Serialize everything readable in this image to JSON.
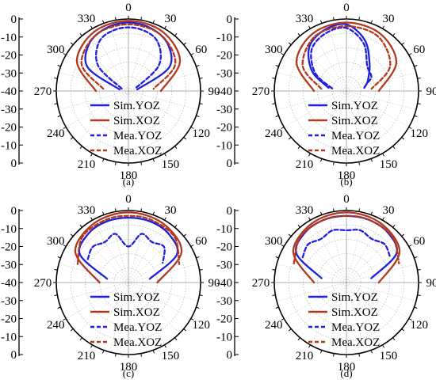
{
  "figure": {
    "panels": [
      {
        "caption": "(a)",
        "chart_data": {
          "type": "polar-line",
          "r_ticks": [
            "0",
            "-10",
            "-20",
            "-30",
            "-40",
            "-30",
            "-20",
            "-10",
            "0"
          ],
          "angle_labels": [
            "0",
            "30",
            "60",
            "90",
            "120",
            "150",
            "180",
            "210",
            "240",
            "270",
            "300",
            "330"
          ],
          "rlim": [
            -40,
            0
          ],
          "legend": "bottom-center",
          "series": [
            {
              "name": "Sim.YOZ",
              "color": "#1f1fdc",
              "dash": "solid",
              "angles": [
                -80,
                -60,
                -40,
                -20,
                0,
                20,
                40,
                60,
                80
              ],
              "values": [
                -35,
                -14,
                -6,
                -3,
                -2,
                -3,
                -6,
                -14,
                -35
              ]
            },
            {
              "name": "Sim.XOZ",
              "color": "#b03a20",
              "dash": "solid",
              "angles": [
                -90,
                -60,
                -30,
                0,
                30,
                60,
                90
              ],
              "values": [
                -22,
                -7,
                -2,
                -1,
                -2,
                -7,
                -22
              ]
            },
            {
              "name": "Mea.YOZ",
              "color": "#1f1fdc",
              "dash": "dashed",
              "angles": [
                -70,
                -50,
                -30,
                -10,
                10,
                30,
                50,
                70
              ],
              "values": [
                -36,
                -18,
                -8,
                -5,
                -5,
                -8,
                -18,
                -36
              ]
            },
            {
              "name": "Mea.XOZ",
              "color": "#b03a20",
              "dash": "dashed",
              "angles": [
                -85,
                -60,
                -30,
                0,
                30,
                60,
                85
              ],
              "values": [
                -26,
                -10,
                -4,
                -3,
                -4,
                -10,
                -26
              ]
            }
          ]
        }
      },
      {
        "caption": "(b)",
        "chart_data": {
          "type": "polar-line",
          "r_ticks": [
            "0",
            "-10",
            "-20",
            "-30",
            "-40",
            "-30",
            "-20",
            "-10",
            "0"
          ],
          "angle_labels": [
            "0",
            "30",
            "60",
            "90",
            "120",
            "150",
            "180",
            "210",
            "240",
            "270",
            "300",
            "330"
          ],
          "rlim": [
            -40,
            0
          ],
          "legend": "bottom-center",
          "series": [
            {
              "name": "Sim.YOZ",
              "color": "#1f1fdc",
              "dash": "solid",
              "angles": [
                -80,
                -60,
                -40,
                -20,
                0,
                20,
                40,
                60,
                70,
                80
              ],
              "values": [
                -30,
                -18,
                -8,
                -4,
                -3,
                -10,
                -20,
                -26,
                -28,
                -30
              ]
            },
            {
              "name": "Sim.XOZ",
              "color": "#b03a20",
              "dash": "solid",
              "angles": [
                -90,
                -60,
                -30,
                0,
                30,
                60,
                90
              ],
              "values": [
                -22,
                -8,
                -3,
                -2,
                -3,
                -8,
                -22
              ]
            },
            {
              "name": "Mea.YOZ",
              "color": "#1f1fdc",
              "dash": "dashed",
              "angles": [
                -80,
                -60,
                -40,
                -20,
                0,
                20,
                40,
                60,
                70,
                80
              ],
              "values": [
                -32,
                -20,
                -10,
                -6,
                -5,
                -12,
                -22,
                -24,
                -28,
                -30
              ]
            },
            {
              "name": "Mea.XOZ",
              "color": "#b03a20",
              "dash": "dashed",
              "angles": [
                -85,
                -60,
                -30,
                0,
                30,
                60,
                85
              ],
              "values": [
                -26,
                -12,
                -5,
                -4,
                -5,
                -12,
                -26
              ]
            }
          ]
        }
      },
      {
        "caption": "(c)",
        "chart_data": {
          "type": "polar-line",
          "r_ticks": [
            "0",
            "-10",
            "-20",
            "-30",
            "-40",
            "-30",
            "-20",
            "-10",
            "0"
          ],
          "angle_labels": [
            "0",
            "30",
            "60",
            "90",
            "120",
            "150",
            "180",
            "210",
            "240",
            "270",
            "300",
            "330"
          ],
          "rlim": [
            -40,
            0
          ],
          "legend": "bottom-center",
          "series": [
            {
              "name": "Sim.YOZ",
              "color": "#1f1fdc",
              "dash": "solid",
              "angles": [
                -80,
                -60,
                -40,
                -20,
                0,
                20,
                40,
                60,
                80
              ],
              "values": [
                -28,
                -9,
                -5,
                -4,
                -4,
                -4,
                -5,
                -9,
                -28
              ]
            },
            {
              "name": "Sim.XOZ",
              "color": "#b03a20",
              "dash": "solid",
              "angles": [
                -90,
                -60,
                -30,
                0,
                30,
                60,
                90
              ],
              "values": [
                -24,
                -6,
                -2,
                -1,
                -2,
                -6,
                -24
              ]
            },
            {
              "name": "Mea.YOZ",
              "color": "#1f1fdc",
              "dash": "dashed",
              "angles": [
                -60,
                -45,
                -30,
                -15,
                0,
                15,
                30,
                45,
                60
              ],
              "values": [
                -14,
                -12,
                -14,
                -12,
                -20,
                -12,
                -14,
                -12,
                -18
              ]
            },
            {
              "name": "Mea.XOZ",
              "color": "#b03a20",
              "dash": "dashed",
              "angles": [
                -70,
                -45,
                -20,
                0,
                20,
                45,
                70
              ],
              "values": [
                -10,
                -4,
                -3,
                -3,
                -3,
                -4,
                -10
              ]
            }
          ]
        }
      },
      {
        "caption": "(d)",
        "chart_data": {
          "type": "polar-line",
          "r_ticks": [
            "0",
            "-10",
            "-20",
            "-30",
            "-40",
            "-30",
            "-20",
            "-10",
            "0"
          ],
          "angle_labels": [
            "0",
            "30",
            "60",
            "90",
            "120",
            "150",
            "180",
            "210",
            "240",
            "270",
            "300",
            "330"
          ],
          "rlim": [
            -40,
            0
          ],
          "legend": "bottom-center",
          "series": [
            {
              "name": "Sim.YOZ",
              "color": "#1f1fdc",
              "dash": "solid",
              "angles": [
                -80,
                -60,
                -40,
                -20,
                0,
                20,
                40,
                60,
                80
              ],
              "values": [
                -26,
                -8,
                -4,
                -3,
                -3,
                -3,
                -4,
                -8,
                -26
              ]
            },
            {
              "name": "Sim.XOZ",
              "color": "#b03a20",
              "dash": "solid",
              "angles": [
                -90,
                -60,
                -30,
                0,
                30,
                60,
                90
              ],
              "values": [
                -22,
                -6,
                -2,
                -1,
                -2,
                -6,
                -22
              ]
            },
            {
              "name": "Mea.YOZ",
              "color": "#1f1fdc",
              "dash": "dashed",
              "angles": [
                -60,
                -45,
                -30,
                -15,
                0,
                15,
                30,
                45,
                60
              ],
              "values": [
                -12,
                -10,
                -12,
                -10,
                -11,
                -10,
                -12,
                -10,
                -12
              ]
            },
            {
              "name": "Mea.XOZ",
              "color": "#b03a20",
              "dash": "dashed",
              "angles": [
                -70,
                -45,
                -20,
                0,
                20,
                45,
                70
              ],
              "values": [
                -9,
                -4,
                -3,
                -3,
                -3,
                -4,
                -9
              ]
            }
          ]
        }
      }
    ]
  }
}
